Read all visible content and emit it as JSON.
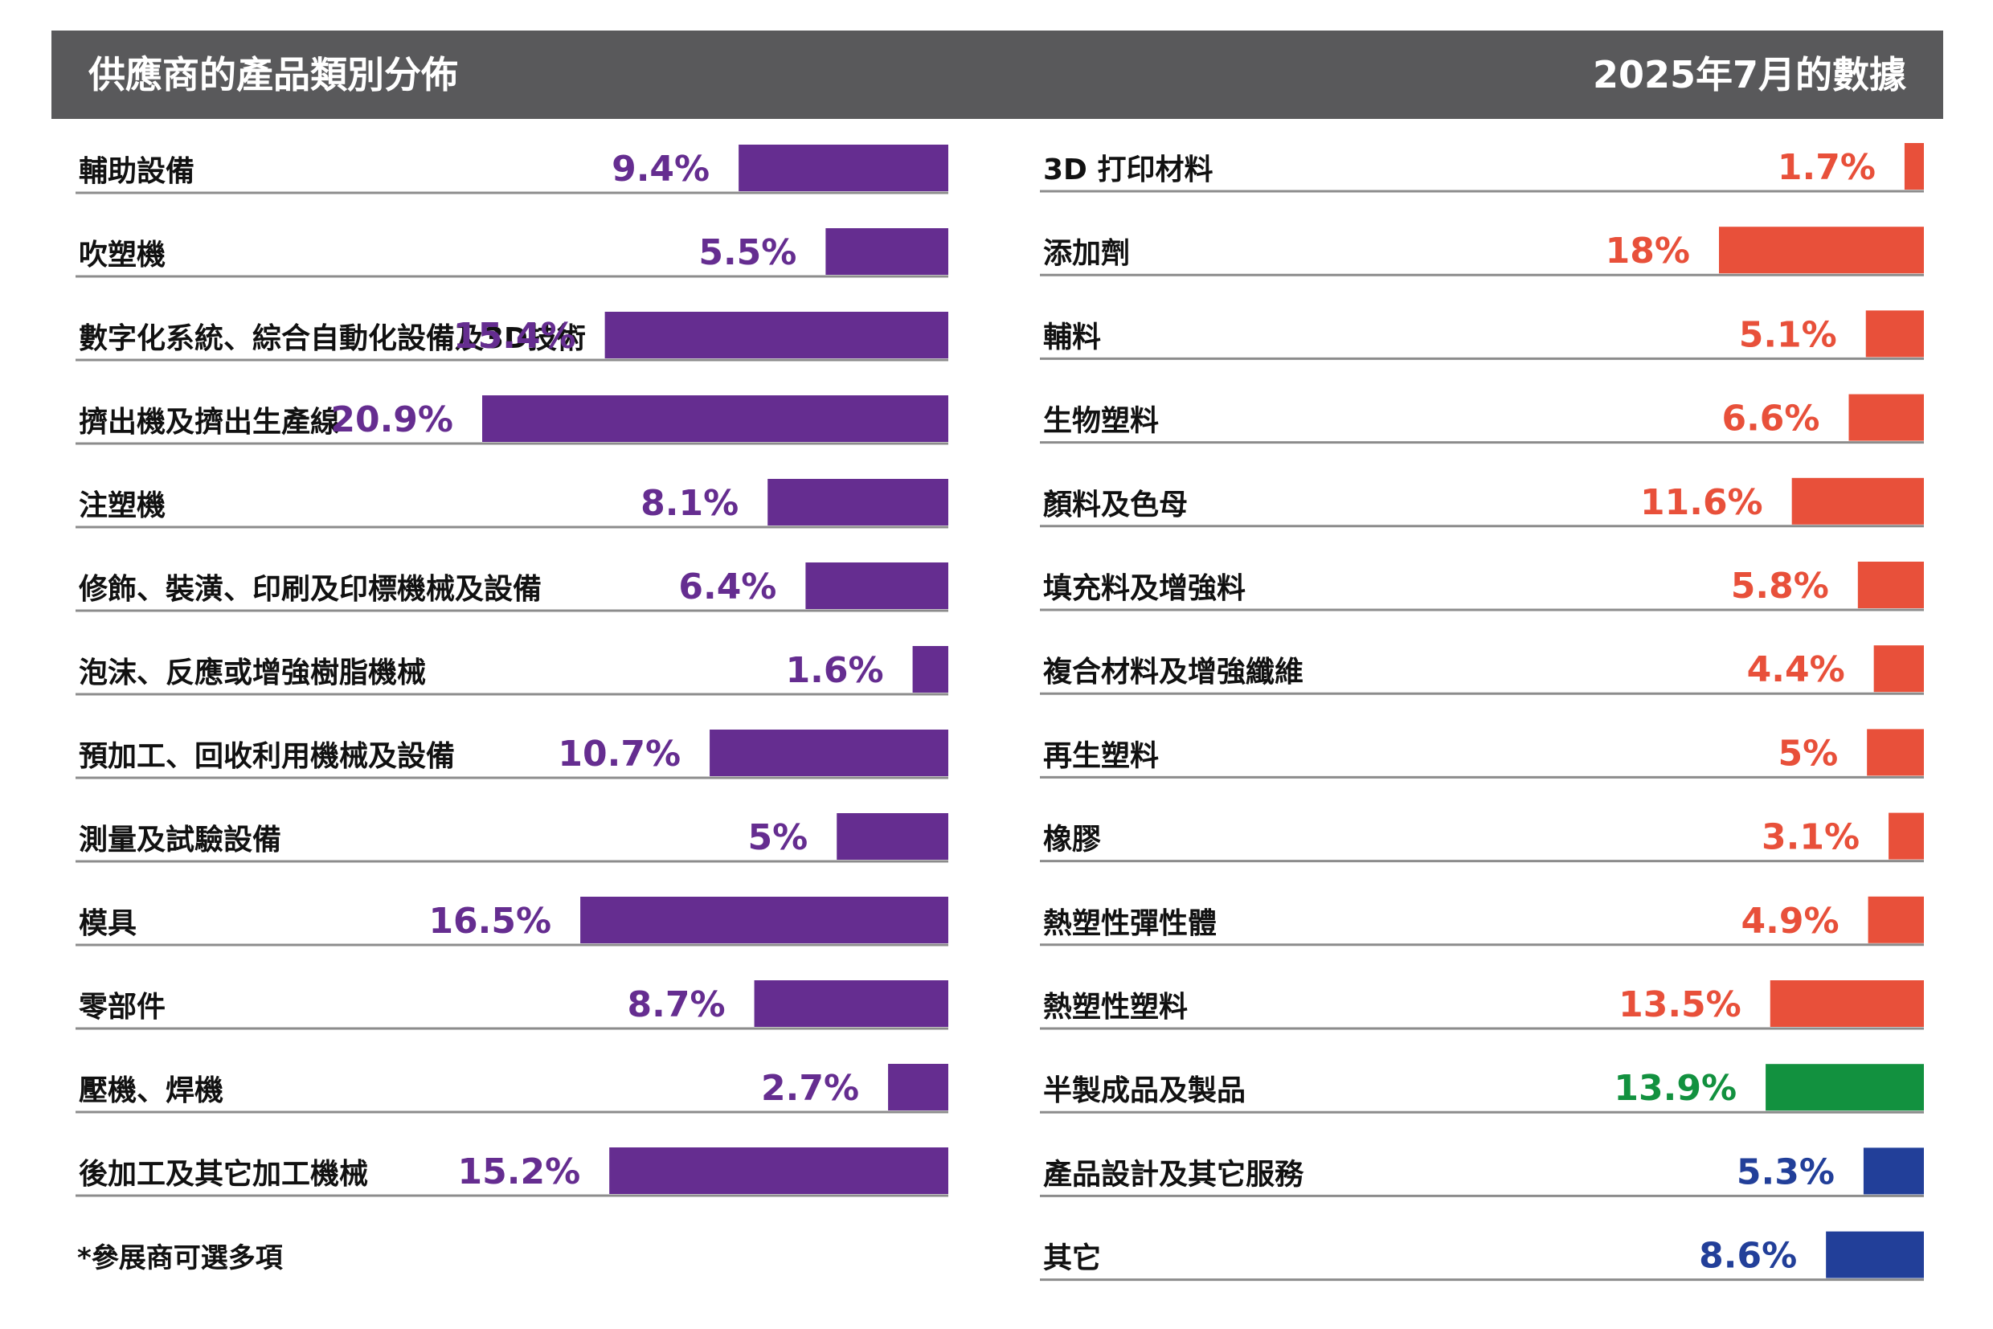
{
  "header": {
    "title": "供應商的產品類別分佈",
    "subtitle": "2025年7月的數據"
  },
  "note": "*參展商可選多項",
  "colors": {
    "header_bg": "#59595b",
    "purple": "#652d90",
    "red": "#e8503a",
    "green": "#12913f",
    "blue": "#223f99",
    "rule": "#8c8c8c"
  },
  "chart_data": [
    {
      "type": "bar",
      "orientation": "horizontal",
      "unit": "%",
      "categories": [
        "輔助設備",
        "吹塑機",
        "數字化系統、綜合自動化設備及3D技術",
        "擠出機及擠出生產線",
        "注塑機",
        "修飾、裝潢、印刷及印標機械及設備",
        "泡沫、反應或增強樹脂機械",
        "預加工、回收利用機械及設備",
        "測量及試驗設備",
        "模具",
        "零部件",
        "壓機、焊機",
        "後加工及其它加工機械"
      ],
      "values": [
        9.4,
        5.5,
        15.4,
        20.9,
        8.1,
        6.4,
        1.6,
        10.7,
        5,
        16.5,
        8.7,
        2.7,
        15.2
      ],
      "labels": [
        "9.4%",
        "5.5%",
        "15.4%",
        "20.9%",
        "8.1%",
        "6.4%",
        "1.6%",
        "10.7%",
        "5%",
        "16.5%",
        "8.7%",
        "2.7%",
        "15.2%"
      ],
      "colors": [
        "purple",
        "purple",
        "purple",
        "purple",
        "purple",
        "purple",
        "purple",
        "purple",
        "purple",
        "purple",
        "purple",
        "purple",
        "purple"
      ]
    },
    {
      "type": "bar",
      "orientation": "horizontal",
      "unit": "%",
      "categories": [
        "3D 打印材料",
        "添加劑",
        "輔料",
        "生物塑料",
        "顏料及色母",
        "填充料及增強料",
        "複合材料及增強纖維",
        "再生塑料",
        "橡膠",
        "熱塑性彈性體",
        "熱塑性塑料",
        "半製成品及製品",
        "產品設計及其它服務",
        "其它"
      ],
      "values": [
        1.7,
        18,
        5.1,
        6.6,
        11.6,
        5.8,
        4.4,
        5,
        3.1,
        4.9,
        13.5,
        13.9,
        5.3,
        8.6
      ],
      "labels": [
        "1.7%",
        "18%",
        "5.1%",
        "6.6%",
        "11.6%",
        "5.8%",
        "4.4%",
        "5%",
        "3.1%",
        "4.9%",
        "13.5%",
        "13.9%",
        "5.3%",
        "8.6%"
      ],
      "colors": [
        "red",
        "red",
        "red",
        "red",
        "red",
        "red",
        "red",
        "red",
        "red",
        "red",
        "red",
        "green",
        "blue",
        "blue"
      ]
    }
  ]
}
